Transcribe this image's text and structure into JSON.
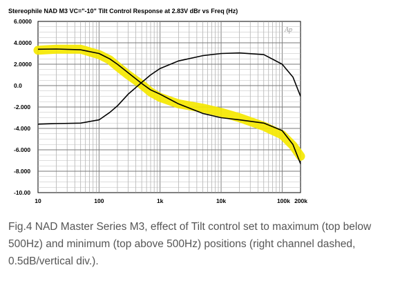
{
  "chart_data": {
    "type": "line",
    "title": "Stereophile  NAD M3 VC=\"-10\"  Tilt Control Response at 2.83V  dBr vs Freq (Hz)",
    "watermark": "Ap",
    "x_scale": "log",
    "xlim": [
      10,
      200000
    ],
    "ylim": [
      -10,
      6
    ],
    "y_ticks": [
      "6.0000",
      "4.0000",
      "2.0000",
      "0.0",
      "-2.000",
      "-4.000",
      "-6.000",
      "-8.000",
      "-10.00"
    ],
    "y_tick_values": [
      6,
      4,
      2,
      0,
      -2,
      -4,
      -6,
      -8,
      -10
    ],
    "x_ticks": [
      "10",
      "100",
      "1k",
      "10k",
      "100k",
      "200k"
    ],
    "x_tick_values": [
      10,
      100,
      1000,
      10000,
      100000,
      200000
    ],
    "grid": true,
    "colors": {
      "highlight": "#f5e800",
      "line": "#000000"
    },
    "series": [
      {
        "style": "black-line",
        "x": [
          10,
          20,
          50,
          100,
          150,
          200,
          300,
          500,
          700,
          1000,
          2000,
          5000,
          10000,
          20000,
          50000,
          100000,
          150000,
          200000
        ],
        "y": [
          3.4,
          3.42,
          3.35,
          3.0,
          2.5,
          2.0,
          1.2,
          0.2,
          -0.4,
          -0.8,
          -1.7,
          -2.6,
          -3.0,
          -3.2,
          -3.5,
          -4.2,
          -5.5,
          -7.3
        ]
      },
      {
        "style": "black-line",
        "x": [
          10,
          20,
          50,
          100,
          150,
          200,
          300,
          500,
          700,
          1000,
          2000,
          5000,
          10000,
          20000,
          50000,
          100000,
          150000,
          200000
        ],
        "y": [
          -3.6,
          -3.55,
          -3.5,
          -3.2,
          -2.5,
          -1.9,
          -0.8,
          0.3,
          1.0,
          1.6,
          2.3,
          2.8,
          3.0,
          3.05,
          2.9,
          2.0,
          0.8,
          -1.0
        ]
      },
      {
        "style": "yellow-band",
        "x": [
          10,
          20,
          50,
          100,
          150,
          200,
          300,
          500,
          700,
          1000,
          2000,
          5000,
          10000,
          20000,
          50000,
          100000,
          150000,
          200000
        ],
        "y": [
          3.3,
          3.4,
          3.4,
          2.9,
          2.4,
          1.8,
          1.0,
          0.1,
          -0.6,
          -1.1,
          -1.7,
          -2.1,
          -2.5,
          -3.0,
          -3.8,
          -4.6,
          -5.6,
          -6.6
        ]
      }
    ]
  },
  "caption": "Fig.4 NAD Master Series M3, effect of Tilt control set to maximum (top below 500Hz) and minimum (top above 500Hz) positions (right channel dashed, 0.5dB/vertical div.)."
}
